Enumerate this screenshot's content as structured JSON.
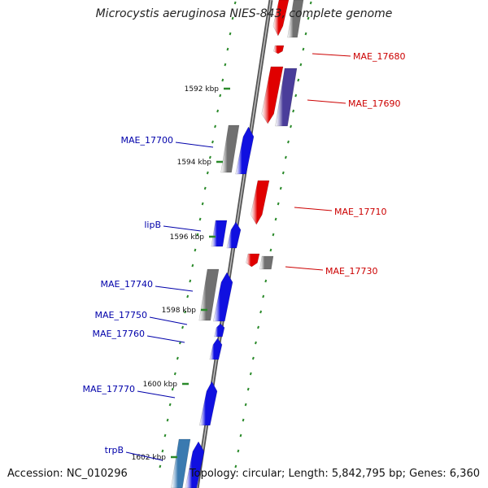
{
  "title": "Microcystis aeruginosa NIES-843, complete genome",
  "accession": "Accession: NC_010296",
  "summary": "Topology: circular; Length: 5,842,795 bp; Genes: 6,360",
  "colors": {
    "backbone": "#7a7a7a",
    "ticks": "#2a8a2a",
    "forward_gene": "#1010e0",
    "reverse_gene": "#e00000",
    "grey_gene": "#707070",
    "purple_gene": "#4a3d9a",
    "steel_gene": "#3a7ab0",
    "label_forward": "#0000aa",
    "label_reverse": "#cc0000"
  },
  "scale_ticks": [
    {
      "label": "1592 kbp"
    },
    {
      "label": "1594 kbp"
    },
    {
      "label": "1596 kbp"
    },
    {
      "label": "1598 kbp"
    },
    {
      "label": "1600 kbp"
    },
    {
      "label": "1602 kbp"
    }
  ],
  "gene_labels": [
    {
      "text": "MAE_17680",
      "strand": "reverse"
    },
    {
      "text": "MAE_17690",
      "strand": "reverse"
    },
    {
      "text": "MAE_17700",
      "strand": "forward"
    },
    {
      "text": "MAE_17710",
      "strand": "reverse"
    },
    {
      "text": "lipB",
      "strand": "forward"
    },
    {
      "text": "MAE_17730",
      "strand": "reverse"
    },
    {
      "text": "MAE_17740",
      "strand": "forward"
    },
    {
      "text": "MAE_17750",
      "strand": "forward"
    },
    {
      "text": "MAE_17760",
      "strand": "forward"
    },
    {
      "text": "MAE_17770",
      "strand": "forward"
    },
    {
      "text": "trpB",
      "strand": "forward"
    }
  ]
}
